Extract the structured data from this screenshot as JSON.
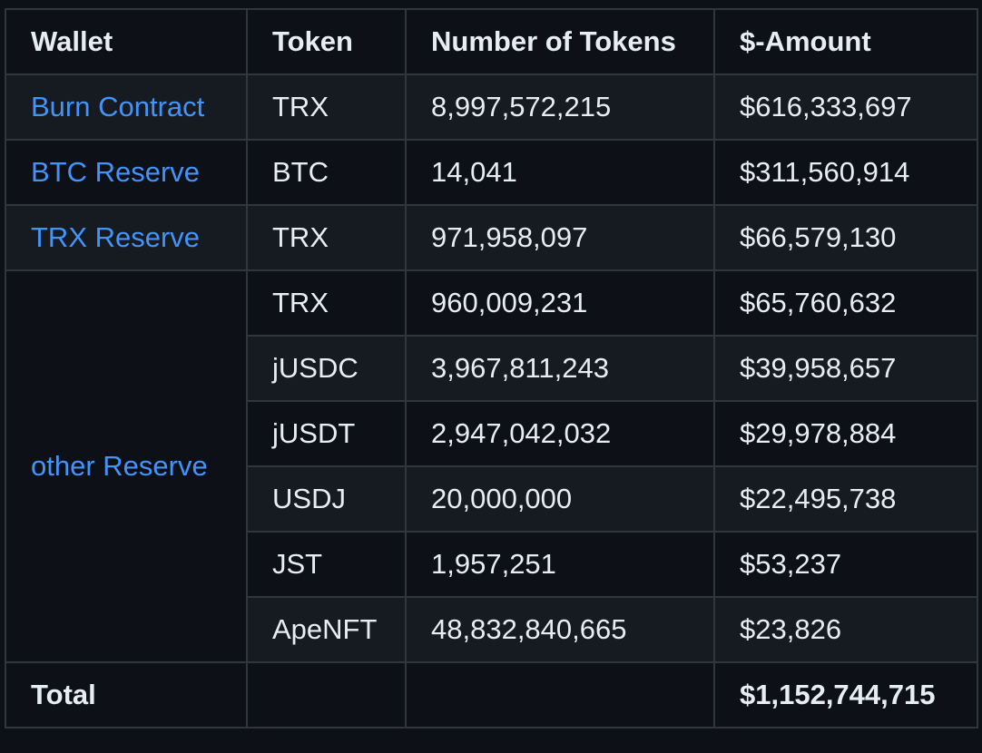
{
  "table": {
    "headers": [
      "Wallet",
      "Token",
      "Number of Tokens",
      "$-Amount"
    ],
    "rows": [
      {
        "wallet": "Burn Contract",
        "token": "TRX",
        "tokens": "8,997,572,215",
        "amount": "$616,333,697"
      },
      {
        "wallet": "BTC Reserve",
        "token": "BTC",
        "tokens": "14,041",
        "amount": "$311,560,914"
      },
      {
        "wallet": "TRX Reserve",
        "token": "TRX",
        "tokens": "971,958,097",
        "amount": "$66,579,130"
      }
    ],
    "other_group": {
      "wallet": "other Reserve",
      "rows": [
        {
          "token": "TRX",
          "tokens": "960,009,231",
          "amount": "$65,760,632"
        },
        {
          "token": "jUSDC",
          "tokens": "3,967,811,243",
          "amount": "$39,958,657"
        },
        {
          "token": "jUSDT",
          "tokens": "2,947,042,032",
          "amount": "$29,978,884"
        },
        {
          "token": "USDJ",
          "tokens": "20,000,000",
          "amount": "$22,495,738"
        },
        {
          "token": "JST",
          "tokens": "1,957,251",
          "amount": "$53,237"
        },
        {
          "token": "ApeNFT",
          "tokens": "48,832,840,665",
          "amount": "$23,826"
        }
      ]
    },
    "total": {
      "label": "Total",
      "token": "",
      "tokens": "",
      "amount": "$1,152,744,715"
    }
  },
  "colors": {
    "background": "#0d1117",
    "row_alt": "#161b22",
    "border": "#30363d",
    "text": "#e6edf3",
    "link": "#4493f8"
  }
}
